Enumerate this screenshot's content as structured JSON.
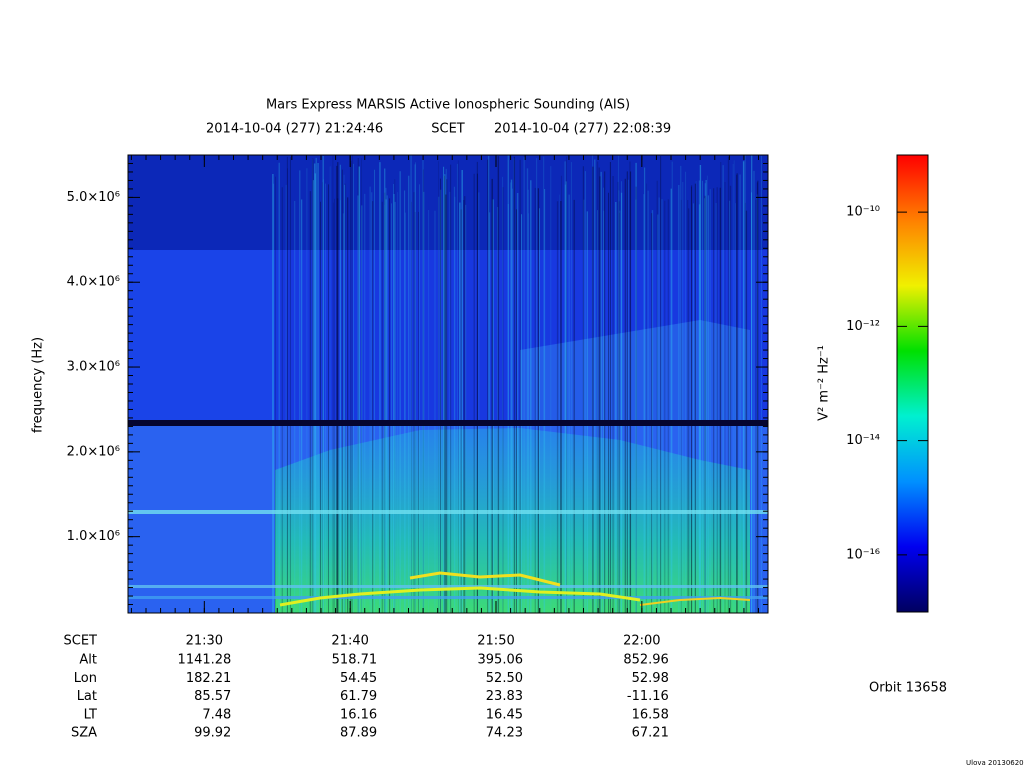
{
  "chart_data": {
    "type": "spectrogram",
    "title": "Mars Express MARSIS Active Ionospheric Sounding (AIS)",
    "start_time": "2014-10-04 (277) 21:24:46",
    "time_label": "SCET",
    "end_time": "2014-10-04 (277) 22:08:39",
    "ylabel": "frequency (Hz)",
    "ylim": [
      100000,
      5500000
    ],
    "yticks": [
      {
        "value": 1000000,
        "label": "1.0×10⁶"
      },
      {
        "value": 2000000,
        "label": "2.0×10⁶"
      },
      {
        "value": 3000000,
        "label": "3.0×10⁶"
      },
      {
        "value": 4000000,
        "label": "4.0×10⁶"
      },
      {
        "value": 5000000,
        "label": "5.0×10⁶"
      }
    ],
    "xticks": [
      "21:30",
      "21:40",
      "21:50",
      "22:00"
    ],
    "colorbar": {
      "label": "V² m⁻² Hz⁻¹",
      "log": true,
      "zlim": [
        1e-17,
        1e-09
      ],
      "ticks": [
        {
          "value": 1e-16,
          "label": "10⁻¹⁶"
        },
        {
          "value": 1e-14,
          "label": "10⁻¹⁴"
        },
        {
          "value": 1e-12,
          "label": "10⁻¹²"
        },
        {
          "value": 1e-10,
          "label": "10⁻¹⁰"
        }
      ],
      "colors": [
        "#000060",
        "#0000f0",
        "#0090ff",
        "#00f0d0",
        "#00e000",
        "#f0f000",
        "#ff8000",
        "#ff0000"
      ]
    }
  },
  "ephemeris": {
    "header": "SCET",
    "rows": [
      {
        "label": "Alt",
        "values": [
          "1141.28",
          "518.71",
          "395.06",
          "852.96"
        ]
      },
      {
        "label": "Lon",
        "values": [
          "182.21",
          "54.45",
          "52.50",
          "52.98"
        ]
      },
      {
        "label": "Lat",
        "values": [
          "85.57",
          "61.79",
          "23.83",
          "-11.16"
        ]
      },
      {
        "label": "LT",
        "values": [
          "7.48",
          "16.16",
          "16.45",
          "16.58"
        ]
      },
      {
        "label": "SZA",
        "values": [
          "99.92",
          "87.89",
          "74.23",
          "67.21"
        ]
      }
    ]
  },
  "orbit": "Orbit 13658",
  "footer": "Ulova 20130620"
}
